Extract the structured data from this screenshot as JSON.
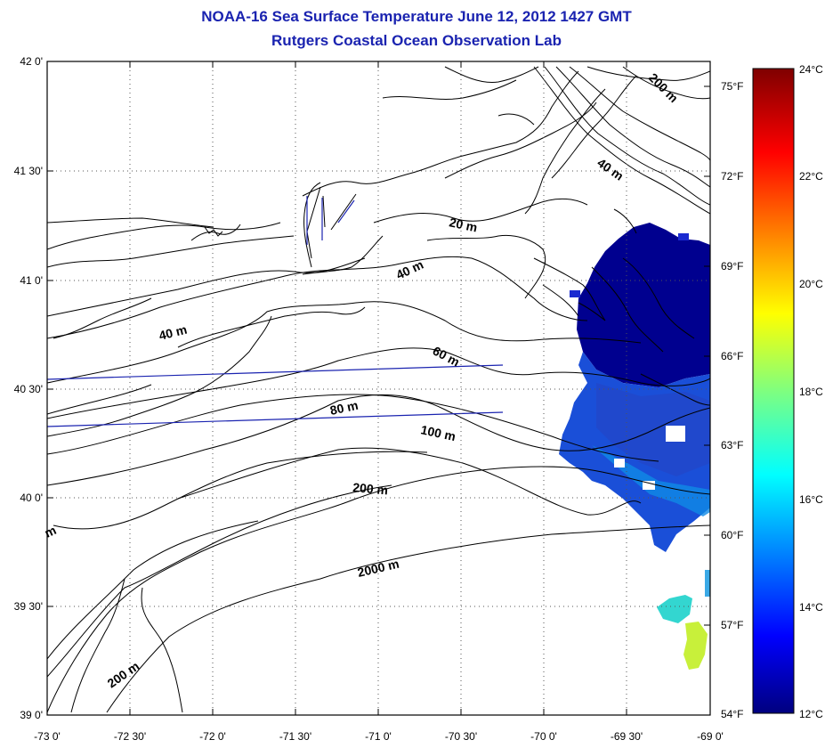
{
  "title": {
    "line1": "NOAA-16 Sea Surface Temperature June 12, 2012 1427 GMT",
    "line2": "Rutgers Coastal Ocean Observation Lab"
  },
  "axes": {
    "lat_labels": [
      "42 0'",
      "41 30'",
      "41 0'",
      "40 30'",
      "40 0'",
      "39 30'",
      "39 0'"
    ],
    "lon_labels": [
      "-73 0'",
      "-72 30'",
      "-72 0'",
      "-71 30'",
      "-71 0'",
      "-70 30'",
      "-70 0'",
      "-69 30'",
      "-69 0'"
    ],
    "fahrenheit_labels": [
      "75°F",
      "72°F",
      "69°F",
      "66°F",
      "63°F",
      "60°F",
      "57°F",
      "54°F"
    ]
  },
  "colorbar": {
    "labels": [
      "24°C",
      "22°C",
      "20°C",
      "18°C",
      "16°C",
      "14°C",
      "12°C"
    ],
    "min_c": 12,
    "max_c": 24,
    "colors": [
      "#00007f",
      "#0000ff",
      "#007fff",
      "#00ffff",
      "#7fff7f",
      "#ffff00",
      "#ff7f00",
      "#ff0000",
      "#7f0000"
    ]
  },
  "contours": {
    "labels": [
      "20 m",
      "40 m",
      "40 m",
      "40 m",
      "60 m",
      "80 m",
      "100 m",
      "200 m",
      "200 m",
      "200 m",
      "2000 m",
      "m"
    ]
  },
  "sst": {
    "main_color": "#00008f",
    "mid_color": "#1a4fd8",
    "cyan_color": "#33d6d0",
    "yellow_color": "#c8f03a"
  }
}
